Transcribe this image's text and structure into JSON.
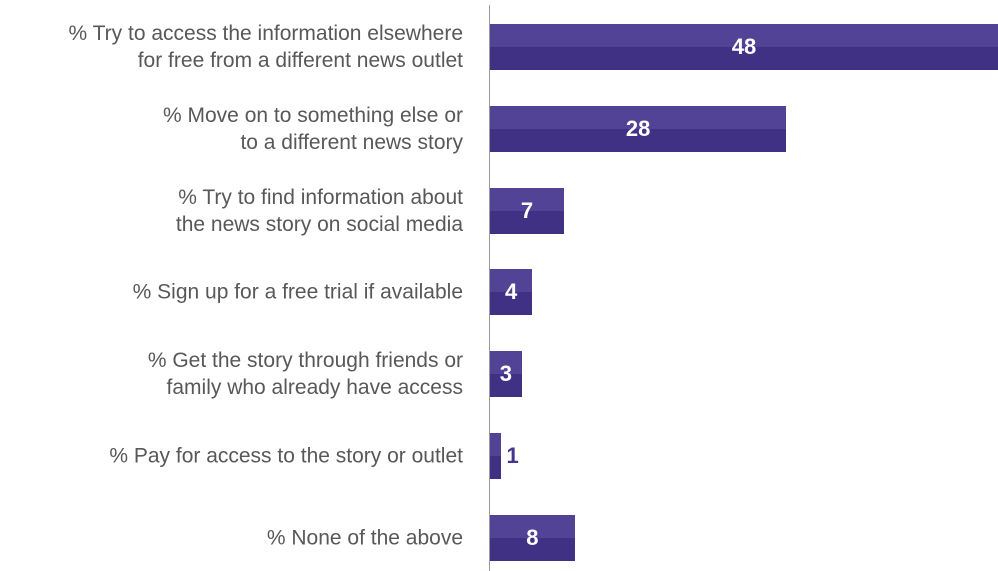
{
  "chart_data": {
    "type": "bar",
    "orientation": "horizontal",
    "categories": [
      "% Try to access the information elsewhere\nfor free from a different news outlet",
      "% Move on to something else or\nto a different news story",
      "% Try to find information about\nthe news story on social media",
      "% Sign up for a free trial if available",
      "% Get the story through friends or\nfamily who already have access",
      "% Pay for access to the story or outlet",
      "% None of the above"
    ],
    "values": [
      48,
      28,
      7,
      4,
      3,
      1,
      8
    ],
    "color": "#45358f",
    "xlim": [
      0,
      48
    ]
  }
}
